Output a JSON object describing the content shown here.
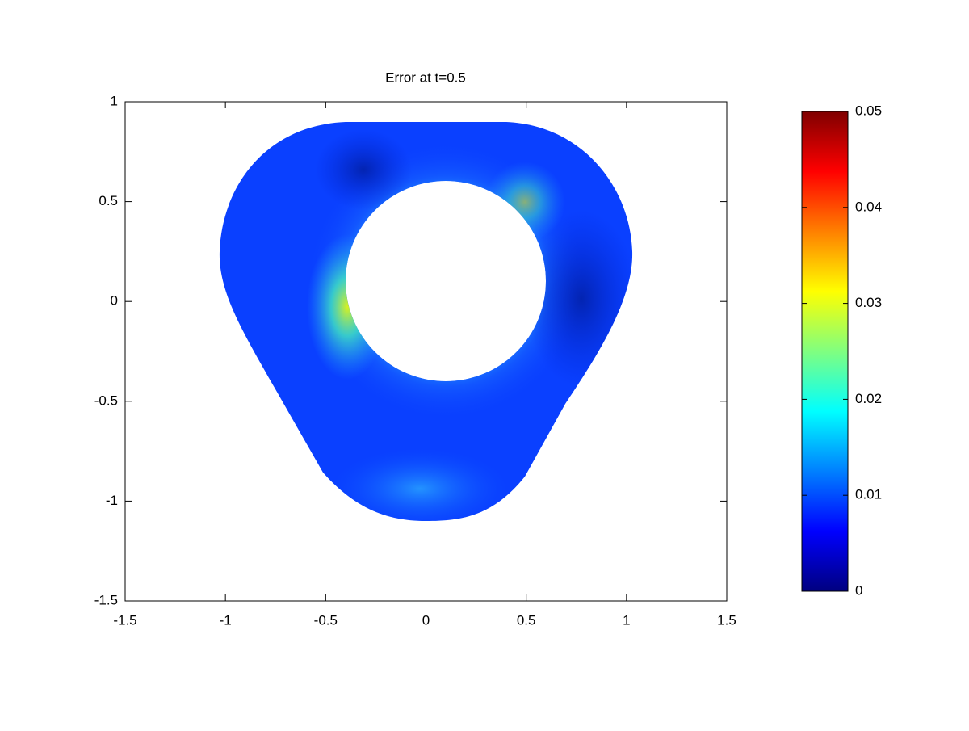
{
  "chart_data": {
    "type": "field",
    "title": "Error at t=0.5",
    "xlim": [
      -1.5,
      1.5
    ],
    "xticks": [
      -1.5,
      -1,
      -0.5,
      0,
      0.5,
      1,
      1.5
    ],
    "ylim": [
      -1.5,
      1
    ],
    "yticks": [
      -1.5,
      -1,
      -0.5,
      0,
      0.5,
      1
    ],
    "colormap": "jet",
    "clim": [
      0,
      0.05
    ],
    "cticks": [
      0,
      0.01,
      0.02,
      0.03,
      0.04,
      0.05
    ]
  }
}
